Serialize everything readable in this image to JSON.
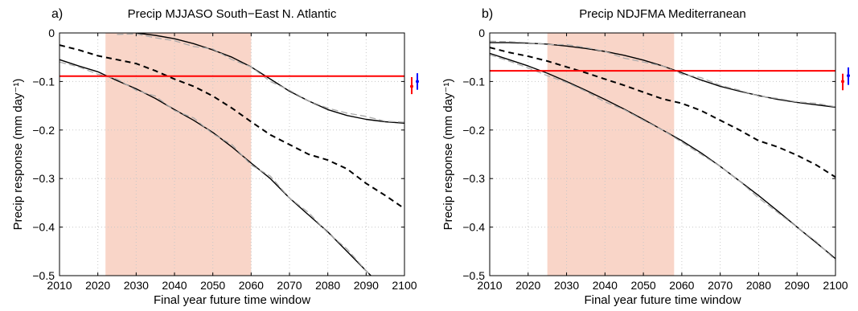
{
  "chart_data": [
    {
      "type": "line",
      "panel_label": "a)",
      "title": "Precip MJJASO South−East N. Atlantic",
      "xlabel": "Final year future time window",
      "ylabel": "Precip response (mm day⁻¹)",
      "xlim": [
        2010,
        2100
      ],
      "ylim": [
        -0.5,
        0
      ],
      "xticks": [
        2010,
        2020,
        2030,
        2040,
        2050,
        2060,
        2070,
        2080,
        2090,
        2100
      ],
      "yticks": [
        0,
        -0.1,
        -0.2,
        -0.3,
        -0.4,
        -0.5
      ],
      "ytick_labels": [
        "0",
        "−0.1",
        "−0.2",
        "−0.3",
        "−0.4",
        "−0.5"
      ],
      "grid": true,
      "shaded_window": [
        2022,
        2060
      ],
      "shaded_color": "#f9d5c8",
      "threshold": -0.089,
      "threshold_color": "#ff0000",
      "series": [
        {
          "style": "solid",
          "color": "#000000",
          "x": [
            2010,
            2015,
            2020,
            2025,
            2030,
            2035,
            2040,
            2045,
            2050,
            2055,
            2060,
            2065,
            2070,
            2075,
            2080,
            2085,
            2090,
            2095,
            2100
          ],
          "values": [
            null,
            null,
            null,
            null,
            0.0,
            -0.005,
            -0.012,
            -0.022,
            -0.035,
            -0.05,
            -0.07,
            -0.095,
            -0.12,
            -0.14,
            -0.158,
            -0.17,
            -0.178,
            -0.183,
            -0.186
          ]
        },
        {
          "style": "dashed",
          "color": "#000000",
          "x": [
            2010,
            2015,
            2020,
            2025,
            2030,
            2035,
            2040,
            2045,
            2050,
            2055,
            2060,
            2065,
            2070,
            2075,
            2080,
            2085,
            2090,
            2095,
            2100
          ],
          "values": [
            -0.025,
            -0.035,
            -0.047,
            -0.055,
            -0.063,
            -0.078,
            -0.095,
            -0.11,
            -0.13,
            -0.155,
            -0.183,
            -0.21,
            -0.23,
            -0.25,
            -0.262,
            -0.28,
            -0.31,
            -0.335,
            -0.362
          ]
        },
        {
          "style": "solid",
          "color": "#000000",
          "x": [
            2010,
            2015,
            2020,
            2025,
            2030,
            2035,
            2040,
            2045,
            2050,
            2055,
            2060,
            2065,
            2070,
            2075,
            2080,
            2085,
            2090,
            2095,
            2100
          ],
          "values": [
            -0.055,
            -0.068,
            -0.08,
            -0.098,
            -0.115,
            -0.135,
            -0.158,
            -0.18,
            -0.205,
            -0.235,
            -0.268,
            -0.3,
            -0.34,
            -0.375,
            -0.41,
            -0.45,
            -0.49,
            -0.53,
            -0.57
          ]
        },
        {
          "style": "dashed",
          "color": "#aaaaaa",
          "x": [
            2025,
            2030,
            2035,
            2040,
            2045,
            2050,
            2055,
            2060,
            2065,
            2070,
            2075,
            2080,
            2085,
            2090,
            2095,
            2100
          ],
          "values": [
            -0.003,
            -0.002,
            -0.01,
            -0.016,
            -0.028,
            -0.033,
            -0.055,
            -0.07,
            -0.1,
            -0.118,
            -0.14,
            -0.155,
            -0.165,
            -0.172,
            -0.182,
            -0.184
          ]
        },
        {
          "style": "dashed",
          "color": "#aaaaaa",
          "x": [
            2010,
            2015,
            2020,
            2025,
            2030,
            2035,
            2040,
            2045,
            2050,
            2055,
            2060,
            2065,
            2070,
            2075,
            2080,
            2085,
            2090,
            2095,
            2100
          ],
          "values": [
            -0.06,
            -0.07,
            -0.085,
            -0.095,
            -0.118,
            -0.13,
            -0.16,
            -0.175,
            -0.208,
            -0.23,
            -0.272,
            -0.295,
            -0.34,
            -0.37,
            -0.412,
            -0.445,
            -0.49,
            -0.53,
            -0.57
          ]
        }
      ],
      "error_bars": [
        {
          "color": "#ff0000",
          "center": -0.11,
          "low": -0.126,
          "high": -0.091
        },
        {
          "color": "#0000ff",
          "center": -0.1,
          "low": -0.117,
          "high": -0.083
        }
      ]
    },
    {
      "type": "line",
      "panel_label": "b)",
      "title": "Precip NDJFMA Mediterranean",
      "xlabel": "Final year future time window",
      "ylabel": "Precip response (mm day⁻¹)",
      "xlim": [
        2010,
        2100
      ],
      "ylim": [
        -0.5,
        0
      ],
      "xticks": [
        2010,
        2020,
        2030,
        2040,
        2050,
        2060,
        2070,
        2080,
        2090,
        2100
      ],
      "yticks": [
        0,
        -0.1,
        -0.2,
        -0.3,
        -0.4,
        -0.5
      ],
      "ytick_labels": [
        "0",
        "−0.1",
        "−0.2",
        "−0.3",
        "−0.4",
        "−0.5"
      ],
      "grid": true,
      "shaded_window": [
        2025,
        2058
      ],
      "shaded_color": "#f9d5c8",
      "threshold": -0.078,
      "threshold_color": "#ff0000",
      "series": [
        {
          "style": "solid",
          "color": "#000000",
          "x": [
            2010,
            2015,
            2020,
            2025,
            2030,
            2035,
            2040,
            2045,
            2050,
            2055,
            2060,
            2065,
            2070,
            2075,
            2080,
            2085,
            2090,
            2095,
            2100
          ],
          "values": [
            -0.02,
            -0.02,
            -0.021,
            -0.023,
            -0.027,
            -0.032,
            -0.038,
            -0.046,
            -0.056,
            -0.068,
            -0.082,
            -0.097,
            -0.11,
            -0.12,
            -0.129,
            -0.137,
            -0.143,
            -0.148,
            -0.153
          ]
        },
        {
          "style": "dashed",
          "color": "#000000",
          "x": [
            2010,
            2015,
            2020,
            2025,
            2030,
            2035,
            2040,
            2045,
            2050,
            2055,
            2060,
            2065,
            2070,
            2075,
            2080,
            2085,
            2090,
            2095,
            2100
          ],
          "values": [
            -0.03,
            -0.04,
            -0.048,
            -0.058,
            -0.07,
            -0.082,
            -0.095,
            -0.108,
            -0.122,
            -0.136,
            -0.145,
            -0.16,
            -0.18,
            -0.2,
            -0.222,
            -0.235,
            -0.252,
            -0.272,
            -0.297
          ]
        },
        {
          "style": "solid",
          "color": "#000000",
          "x": [
            2010,
            2015,
            2020,
            2025,
            2030,
            2035,
            2040,
            2045,
            2050,
            2055,
            2060,
            2065,
            2070,
            2075,
            2080,
            2085,
            2090,
            2095,
            2100
          ],
          "values": [
            -0.042,
            -0.055,
            -0.068,
            -0.083,
            -0.1,
            -0.118,
            -0.137,
            -0.157,
            -0.178,
            -0.2,
            -0.222,
            -0.247,
            -0.275,
            -0.305,
            -0.335,
            -0.367,
            -0.4,
            -0.432,
            -0.465
          ]
        },
        {
          "style": "dashed",
          "color": "#aaaaaa",
          "x": [
            2010,
            2015,
            2020,
            2025,
            2030,
            2035,
            2040,
            2045,
            2050,
            2055,
            2060,
            2065,
            2070,
            2075,
            2080,
            2085,
            2090,
            2095,
            2100
          ],
          "values": [
            -0.017,
            -0.018,
            -0.02,
            -0.024,
            -0.024,
            -0.03,
            -0.038,
            -0.052,
            -0.06,
            -0.068,
            -0.085,
            -0.092,
            -0.108,
            -0.118,
            -0.13,
            -0.135,
            -0.142,
            -0.145,
            -0.152
          ]
        },
        {
          "style": "dashed",
          "color": "#aaaaaa",
          "x": [
            2010,
            2015,
            2020,
            2025,
            2030,
            2035,
            2040,
            2045,
            2050,
            2055,
            2060,
            2065,
            2070,
            2075,
            2080,
            2085,
            2090,
            2095,
            2100
          ],
          "values": [
            -0.045,
            -0.058,
            -0.072,
            -0.088,
            -0.102,
            -0.12,
            -0.142,
            -0.158,
            -0.18,
            -0.2,
            -0.225,
            -0.25,
            -0.275,
            -0.305,
            -0.34,
            -0.37,
            -0.4,
            -0.43,
            -0.468
          ]
        }
      ],
      "error_bars": [
        {
          "color": "#ff0000",
          "center": -0.1,
          "low": -0.118,
          "high": -0.084
        },
        {
          "color": "#0000ff",
          "center": -0.088,
          "low": -0.107,
          "high": -0.071
        }
      ]
    }
  ]
}
